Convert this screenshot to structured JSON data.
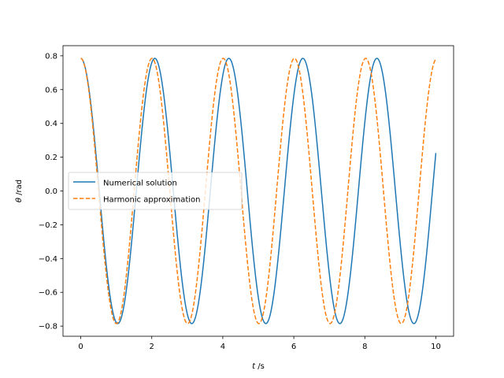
{
  "chart_data": {
    "type": "line",
    "title": "",
    "xlabel": {
      "symbol": "t",
      "unit": " /s"
    },
    "ylabel": {
      "symbol": "θ",
      "unit": " /rad"
    },
    "xlim": [
      -0.5,
      10.5
    ],
    "ylim": [
      -0.86,
      0.86
    ],
    "xticks": [
      0,
      2,
      4,
      6,
      8,
      10
    ],
    "xtick_labels": [
      "0",
      "2",
      "4",
      "6",
      "8",
      "10"
    ],
    "yticks": [
      -0.8,
      -0.6,
      -0.4,
      -0.2,
      0.0,
      0.2,
      0.4,
      0.6,
      0.8
    ],
    "ytick_labels": [
      "−0.8",
      "−0.6",
      "−0.4",
      "−0.2",
      "0.0",
      "0.2",
      "0.4",
      "0.6",
      "0.8"
    ],
    "grid": false,
    "legend": {
      "position": "center-left"
    },
    "series": [
      {
        "name": "Numerical solution",
        "style": "solid",
        "color": "#1f77b4",
        "amplitude": 0.785,
        "period": 2.085,
        "x_start": 0,
        "x_end": 10,
        "x": [
          0,
          0.5,
          1.04,
          1.56,
          2.08,
          2.6,
          3.13,
          3.65,
          4.17,
          4.69,
          5.21,
          5.73,
          6.25,
          6.77,
          7.3,
          7.82,
          8.34,
          8.86,
          9.38,
          10
        ],
        "values": [
          0.785,
          0.0,
          -0.785,
          0.0,
          0.785,
          0.0,
          -0.785,
          0.0,
          0.785,
          0.0,
          -0.785,
          0.0,
          0.785,
          0.0,
          -0.785,
          0.0,
          0.785,
          0.0,
          -0.785,
          0.235
        ]
      },
      {
        "name": "Harmonic approximation",
        "style": "dashed",
        "color": "#ff7f0e",
        "amplitude": 0.785,
        "period": 2.006,
        "x_start": 0,
        "x_end": 10,
        "x": [
          0,
          0.5,
          1.0,
          1.5,
          2.01,
          2.51,
          3.01,
          3.51,
          4.01,
          4.51,
          5.02,
          5.52,
          6.02,
          6.52,
          7.02,
          7.52,
          8.02,
          8.53,
          9.03,
          10
        ],
        "values": [
          0.785,
          0.0,
          -0.785,
          0.0,
          0.785,
          0.0,
          -0.785,
          0.0,
          0.785,
          0.0,
          -0.785,
          0.0,
          0.785,
          0.0,
          -0.785,
          0.0,
          0.785,
          0.0,
          -0.785,
          0.77
        ]
      }
    ]
  }
}
